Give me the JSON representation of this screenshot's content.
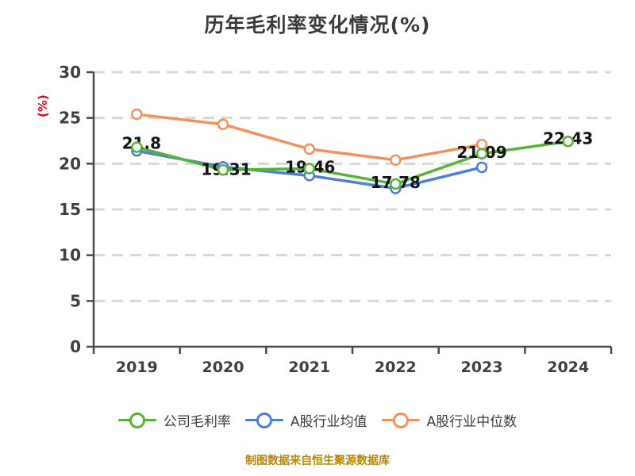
{
  "chart_data": {
    "type": "line",
    "title": "历年毛利率变化情况(%)",
    "ylabel": "(%)",
    "categories": [
      "2019",
      "2020",
      "2021",
      "2022",
      "2023",
      "2024"
    ],
    "ylim": [
      0,
      30
    ],
    "yticks": [
      "0",
      "5",
      "10",
      "15",
      "20",
      "25",
      "30"
    ],
    "grid": "horizontal-dashed",
    "legend_position": "bottom",
    "series": [
      {
        "name": "公司毛利率",
        "color": "#55b335",
        "values": [
          21.8,
          19.31,
          19.46,
          17.78,
          21.09,
          22.43
        ],
        "point_labels": [
          "21.8",
          "19.31",
          "19.46",
          "17.78",
          "21.09",
          "22.43"
        ]
      },
      {
        "name": "A股行业均值",
        "color": "#4d7fd8",
        "values": [
          21.4,
          19.65,
          18.7,
          17.3,
          19.6,
          null
        ]
      },
      {
        "name": "A股行业中位数",
        "color": "#f4915a",
        "values": [
          25.4,
          24.3,
          21.6,
          20.4,
          22.1,
          null
        ]
      }
    ]
  },
  "footer": {
    "note": "制图数据来自恒生聚源数据库"
  },
  "colors": {
    "background": "#ffffff",
    "title": "#3a3a3a",
    "axis": "#4a4a4a",
    "tick_label": "#3f3f3f",
    "grid": "#d8d8d8",
    "ylabel": "#e8000d",
    "data_label": "#141414",
    "marker_fill": "#ffffff",
    "footer": "#b8860b"
  }
}
